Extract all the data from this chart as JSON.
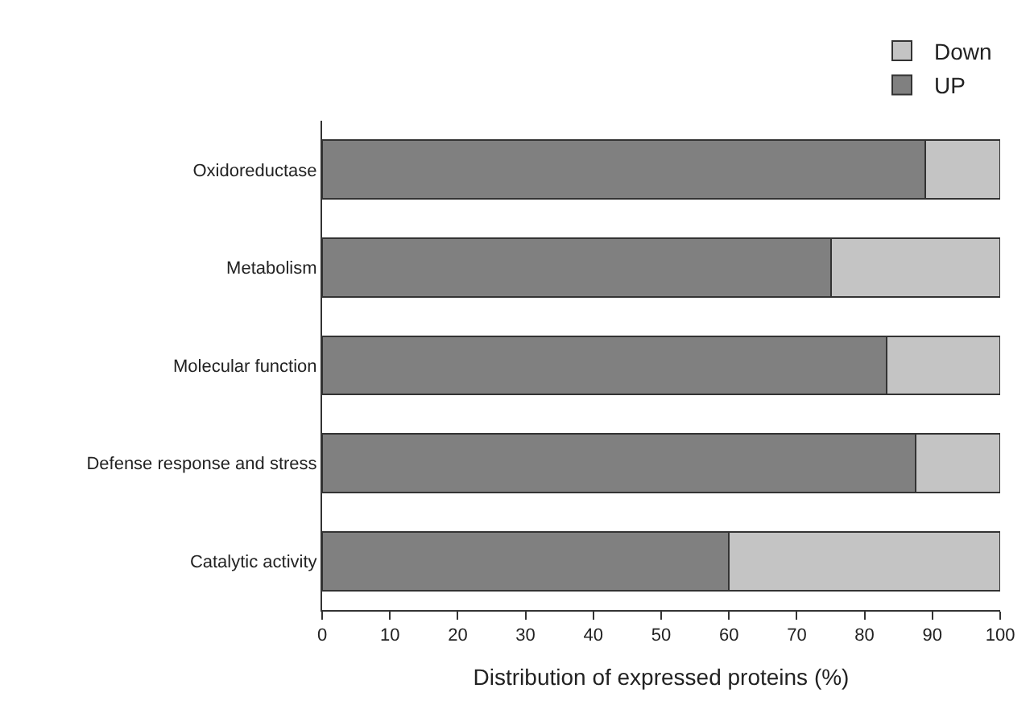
{
  "chart_data": {
    "type": "bar",
    "orientation": "horizontal",
    "stacked": true,
    "xlabel": "Distribution of expressed proteins (%)",
    "categories": [
      "Oxidoreductase",
      "Metabolism",
      "Molecular function",
      "Defense response and stress",
      "Catalytic activity"
    ],
    "series": [
      {
        "name": "UP",
        "color": "#808080",
        "values": [
          89,
          75,
          83.3,
          87.5,
          60
        ]
      },
      {
        "name": "Down",
        "color": "#c4c4c4",
        "values": [
          11,
          25,
          16.7,
          12.5,
          40
        ]
      }
    ],
    "xlim": [
      0,
      100
    ],
    "xticks": [
      0,
      10,
      20,
      30,
      40,
      50,
      60,
      70,
      80,
      90,
      100
    ],
    "legend": "top right"
  }
}
